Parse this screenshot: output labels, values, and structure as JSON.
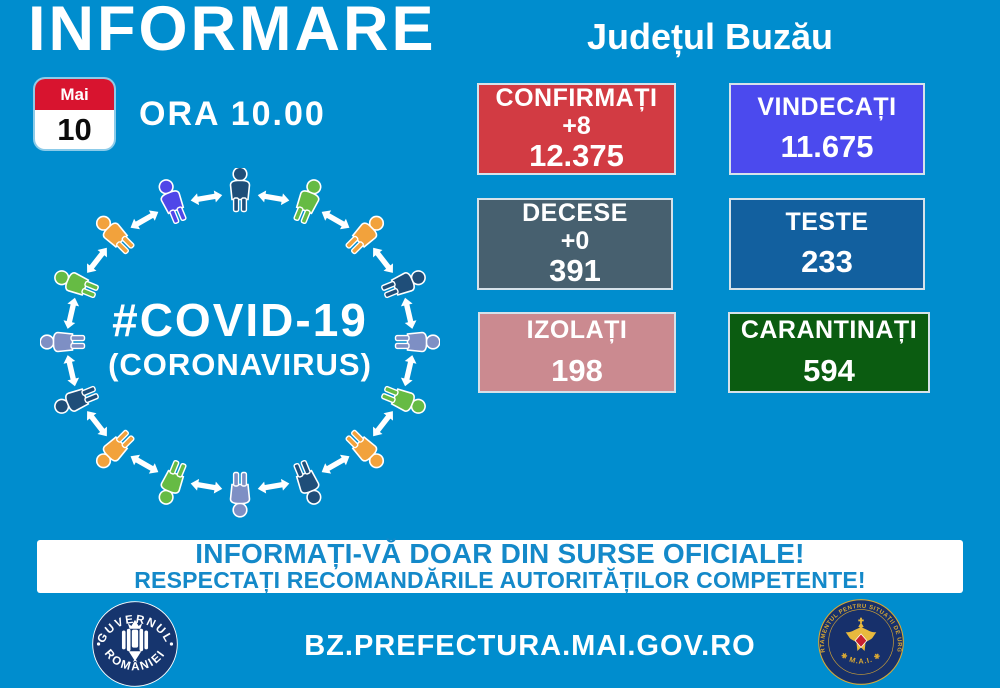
{
  "header": {
    "title": "INFORMARE",
    "county": "Județul Buzău",
    "calendar": {
      "month": "Mai",
      "day": "10"
    },
    "time": "ORA 10.00"
  },
  "stats": [
    {
      "id": "confirmati",
      "label": "CONFIRMAȚI",
      "delta": "+8",
      "value": "12.375",
      "bg": "#d23b43"
    },
    {
      "id": "vindecati",
      "label": "VINDECAȚI",
      "value": "11.675",
      "bg": "#4b4aee"
    },
    {
      "id": "decese",
      "label": "DECESE",
      "delta": "+0",
      "value": "391",
      "bg": "#47606f"
    },
    {
      "id": "teste",
      "label": "TESTE",
      "value": "233",
      "bg": "#12609f"
    },
    {
      "id": "izolati",
      "label": "IZOLAȚI",
      "value": "198",
      "bg": "#cb8a90"
    },
    {
      "id": "carantinati",
      "label": "CARANTINAȚI",
      "value": "594",
      "bg": "#0b5c11"
    }
  ],
  "diagram": {
    "line1": "#COVID-19",
    "line2": "(CORONAVIRUS)",
    "arrow_color": "#ffffff",
    "person_colors": [
      "#1f4e79",
      "#66bb44",
      "#f2a23c",
      "#1f4e79",
      "#7e8fc4",
      "#66bb44",
      "#f2a23c",
      "#1f4e79",
      "#7e8fc4",
      "#66bb44",
      "#f2a23c",
      "#1f4e79",
      "#7e8fc4",
      "#66bb44",
      "#f2a23c",
      "#4f46e8"
    ]
  },
  "banner": {
    "line1": "INFORMAȚI-VĂ DOAR DIN SURSE OFICIALE!",
    "line2": "RESPECTAȚI RECOMANDĂRILE AUTORITĂȚILOR COMPETENTE!"
  },
  "footer": {
    "url": "BZ.PREFECTURA.MAI.GOV.RO",
    "left_seal": {
      "top": "GUVERNUL",
      "bottom": "ROMÂNIEI"
    },
    "right_seal": {
      "top": "DEPARTAMENTUL PENTRU SITUAȚII DE URGENȚĂ",
      "bottom": "✱ M.A.I. ✱"
    }
  },
  "colors": {
    "background": "#008dce",
    "banner_text": "#1489c9",
    "calendar_red": "#d8142f",
    "seal_navy": "#16356e",
    "seal_gold": "#d9a833"
  }
}
